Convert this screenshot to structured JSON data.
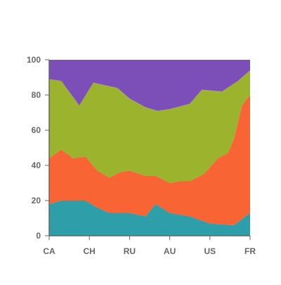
{
  "chart_data": {
    "type": "area",
    "stacked": true,
    "percent": true,
    "categories": [
      "CA",
      "CH",
      "RU",
      "AU",
      "US",
      "FR"
    ],
    "x_tick_labels": [
      "CA",
      "CH",
      "RU",
      "AU",
      "US",
      "FR"
    ],
    "y_tick_labels": [
      "0",
      "20",
      "40",
      "60",
      "80",
      "100"
    ],
    "ylim": [
      0,
      100
    ],
    "grid": false,
    "legend": "none",
    "title": "",
    "xlabel": "",
    "ylabel": "",
    "x_positions": [
      0,
      0.4,
      1,
      1.4,
      2,
      2.5,
      3,
      3.5,
      4,
      4.5,
      5
    ],
    "series": [
      {
        "color": "#2e9ea8",
        "values": [
          18,
          20,
          20,
          16,
          13,
          13,
          11,
          18,
          13,
          11,
          7,
          6,
          13
        ],
        "x": [
          0,
          0.3,
          0.9,
          1.2,
          1.5,
          2,
          2.4,
          2.65,
          3,
          3.5,
          4,
          4.6,
          5
        ]
      },
      {
        "color": "#f86433",
        "cumulative": [
          44,
          49,
          44,
          45,
          37,
          33,
          36,
          37,
          34,
          34,
          30,
          31,
          31,
          35,
          44,
          47,
          55,
          74,
          80
        ],
        "x": [
          0,
          0.3,
          0.6,
          0.9,
          1.2,
          1.5,
          1.75,
          2,
          2.4,
          2.65,
          3,
          3.25,
          3.5,
          3.85,
          4.2,
          4.45,
          4.6,
          4.8,
          5
        ]
      },
      {
        "color": "#9cb32d",
        "cumulative": [
          89,
          88,
          74,
          87,
          85,
          84,
          78,
          73,
          71,
          72,
          75,
          83,
          82,
          88,
          94
        ],
        "x": [
          0,
          0.3,
          0.75,
          1.1,
          1.5,
          1.7,
          2,
          2.4,
          2.7,
          3,
          3.5,
          3.8,
          4.3,
          4.7,
          5
        ]
      },
      {
        "color": "#7b4fb7",
        "cumulative": [
          100,
          100,
          100,
          100,
          100,
          100,
          100,
          100,
          100,
          100,
          100,
          100,
          100,
          100,
          100
        ],
        "x": [
          0,
          0.3,
          0.75,
          1.1,
          1.5,
          1.7,
          2,
          2.4,
          2.7,
          3,
          3.5,
          3.8,
          4.3,
          4.7,
          5
        ]
      }
    ],
    "axis_color": "#666666"
  }
}
